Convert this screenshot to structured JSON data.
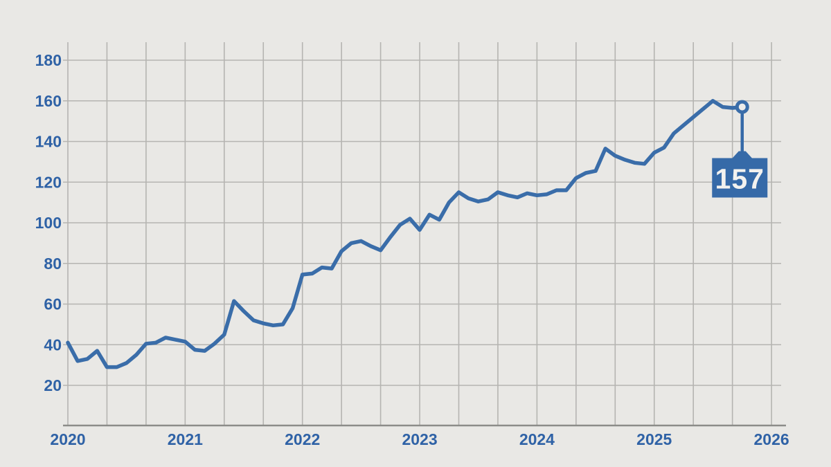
{
  "chart_data": {
    "type": "line",
    "title": "",
    "xlabel": "",
    "ylabel": "",
    "x_start_year": 2020,
    "points_per_month": 1,
    "x": [
      "2020-01",
      "2020-02",
      "2020-03",
      "2020-04",
      "2020-05",
      "2020-06",
      "2020-07",
      "2020-08",
      "2020-09",
      "2020-10",
      "2020-11",
      "2020-12",
      "2021-01",
      "2021-02",
      "2021-03",
      "2021-04",
      "2021-05",
      "2021-06",
      "2021-07",
      "2021-08",
      "2021-09",
      "2021-10",
      "2021-11",
      "2021-12",
      "2022-01",
      "2022-02",
      "2022-03",
      "2022-04",
      "2022-05",
      "2022-06",
      "2022-07",
      "2022-08",
      "2022-09",
      "2022-10",
      "2022-11",
      "2022-12",
      "2023-01",
      "2023-02",
      "2023-03",
      "2023-04",
      "2023-05",
      "2023-06",
      "2023-07",
      "2023-08",
      "2023-09",
      "2023-10",
      "2023-11",
      "2023-12",
      "2024-01",
      "2024-02",
      "2024-03",
      "2024-04",
      "2024-05",
      "2024-06",
      "2024-07",
      "2024-08",
      "2024-09",
      "2024-10",
      "2024-11",
      "2024-12",
      "2025-01",
      "2025-02",
      "2025-03",
      "2025-04",
      "2025-05",
      "2025-06",
      "2025-07",
      "2025-08",
      "2025-09",
      "2025-10"
    ],
    "values": [
      41,
      32,
      33,
      37,
      29,
      29,
      31,
      35,
      40.5,
      41,
      43.5,
      42.5,
      41.5,
      37.5,
      37,
      40.5,
      45,
      61.5,
      56.5,
      52,
      50.5,
      49.5,
      50,
      58,
      74.5,
      75,
      78,
      77.5,
      86,
      90,
      91,
      88.5,
      86.5,
      93,
      99,
      102,
      96.5,
      104,
      101.5,
      110,
      115,
      112,
      110.5,
      111.5,
      115,
      113.5,
      112.5,
      114.5,
      113.5,
      114,
      116,
      116,
      122,
      124.5,
      125.5,
      136.5,
      133,
      131,
      129.5,
      129,
      134.5,
      137,
      144,
      148,
      152,
      156,
      160,
      157,
      156.5,
      157
    ],
    "last_value_label": "157",
    "x_ticks": [
      "2020",
      "2021",
      "2022",
      "2023",
      "2024",
      "2025",
      "2026"
    ],
    "y_ticks": [
      20,
      40,
      60,
      80,
      100,
      120,
      140,
      160,
      180
    ],
    "ylim": [
      0,
      188
    ],
    "grid": {
      "x_divisions_per_year": 3,
      "horizontal": true,
      "vertical": true
    },
    "legend_position": "none",
    "colors": {
      "background": "#e9e8e5",
      "line": "#3a6da9",
      "label_box": "#366aa8",
      "label_text": "#f3f2ef",
      "marker_fill": "#edecea",
      "axis_text": "#2f62a6",
      "grid_line": "#b5b4b1",
      "baseline": "#8c8c89"
    }
  }
}
